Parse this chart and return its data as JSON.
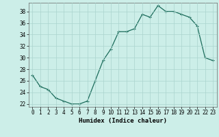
{
  "x": [
    0,
    1,
    2,
    3,
    4,
    5,
    6,
    7,
    8,
    9,
    10,
    11,
    12,
    13,
    14,
    15,
    16,
    17,
    18,
    19,
    20,
    21,
    22,
    23
  ],
  "y": [
    27,
    25,
    24.5,
    23,
    22.5,
    22,
    22,
    22.5,
    26,
    29.5,
    31.5,
    34.5,
    34.5,
    35,
    37.5,
    37,
    39,
    38,
    38,
    37.5,
    37,
    35.5,
    30,
    29.5
  ],
  "line_color": "#1a6b5a",
  "marker": "+",
  "marker_size": 3,
  "linewidth": 0.9,
  "background_color": "#cceee8",
  "grid_color": "#aad4ce",
  "xlabel": "Humidex (Indice chaleur)",
  "ylim_min": 21.5,
  "ylim_max": 39.5,
  "xlim_min": -0.5,
  "xlim_max": 23.5,
  "yticks": [
    22,
    24,
    26,
    28,
    30,
    32,
    34,
    36,
    38
  ],
  "xticks": [
    0,
    1,
    2,
    3,
    4,
    5,
    6,
    7,
    8,
    9,
    10,
    11,
    12,
    13,
    14,
    15,
    16,
    17,
    18,
    19,
    20,
    21,
    22,
    23
  ],
  "axis_fontsize": 5.5,
  "xlabel_fontsize": 6.5,
  "markeredgewidth": 0.8
}
